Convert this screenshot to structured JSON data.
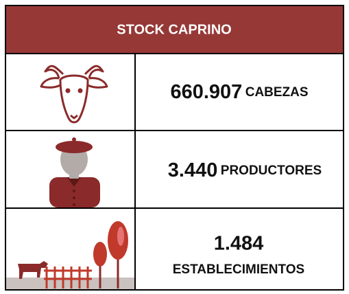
{
  "header": {
    "title": "STOCK CAPRINO"
  },
  "rows": [
    {
      "value": "660.907",
      "unit": "CABEZAS"
    },
    {
      "value": "3.440",
      "unit": "PRODUCTORES"
    },
    {
      "value": "1.484",
      "unit": "ESTABLECIMIENTOS"
    }
  ]
}
